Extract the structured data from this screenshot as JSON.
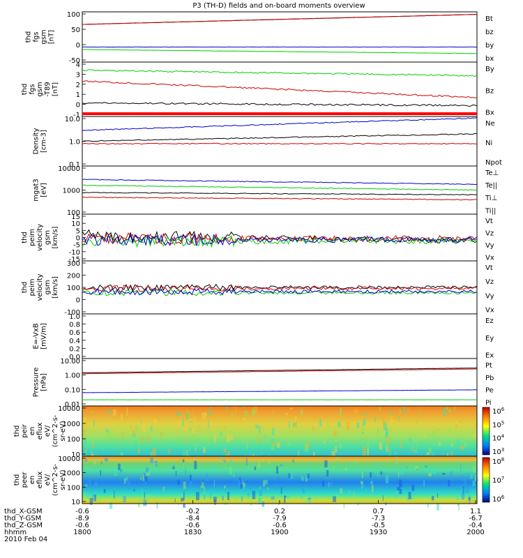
{
  "title": "P3 (TH-D) fields and on-board moments overview",
  "date": "2010 Feb 04",
  "chart_data": [
    {
      "type": "line",
      "panel": "fgs",
      "ylabel": [
        "thd",
        "fgs",
        "gsm",
        "[nT]"
      ],
      "ylim": [
        -50,
        100
      ],
      "ticks": [
        "100",
        "50",
        "0",
        "-50"
      ],
      "series": [
        {
          "name": "Bt",
          "color": "#000000"
        },
        {
          "name": "bz",
          "color": "#cc0000"
        },
        {
          "name": "by",
          "color": "#00cc00"
        },
        {
          "name": "bx",
          "color": "#0000cc"
        }
      ]
    },
    {
      "type": "line",
      "panel": "fgs-detrended",
      "ylabel": [
        "thd",
        "fgs",
        "gsm",
        "-T89",
        "[nT]"
      ],
      "ylim": [
        -2,
        5
      ],
      "ticks": [
        "4",
        "3",
        "2",
        "1",
        "0",
        "-1"
      ],
      "series": [
        {
          "name": "By",
          "color": "#00cc00"
        },
        {
          "name": "Bz",
          "color": "#cc0000"
        },
        {
          "name": "Bx",
          "color": "#000000"
        }
      ]
    },
    {
      "type": "line",
      "panel": "density",
      "ylabel": [
        "Density",
        "[cm-3]"
      ],
      "ylim": [
        0.1,
        10
      ],
      "scale": "log",
      "ticks": [
        "10.0",
        "1.0",
        "0.1"
      ],
      "series": [
        {
          "name": "Ne",
          "color": "#cc0000"
        },
        {
          "name": "Ni",
          "color": "#000000"
        },
        {
          "name": "Npot",
          "color": "#0000cc"
        }
      ]
    },
    {
      "type": "line",
      "panel": "temperature",
      "ylabel": [
        "mgat3",
        "[eV]"
      ],
      "ylim": [
        10,
        10000
      ],
      "scale": "log",
      "ticks": [
        "10000",
        "1000",
        "100"
      ],
      "series": [
        {
          "name": "Te⊥",
          "color": "#cc0000"
        },
        {
          "name": "Te||",
          "color": "#000000"
        },
        {
          "name": "Ti⊥",
          "color": "#0000cc"
        },
        {
          "name": "Ti||",
          "color": "#00cc00"
        }
      ]
    },
    {
      "type": "line",
      "panel": "velocity-detrended",
      "ylabel": [
        "thd",
        "peim",
        "velocity",
        "gsm",
        "[km/s]"
      ],
      "ylim": [
        -15,
        15
      ],
      "ticks": [
        "15",
        "10",
        "5",
        "0",
        "-5",
        "-10",
        "-15"
      ],
      "series": [
        {
          "name": "Vt",
          "color": "#000000"
        },
        {
          "name": "Vz",
          "color": "#cc0000"
        },
        {
          "name": "Vy",
          "color": "#00cc00"
        },
        {
          "name": "Vx",
          "color": "#0000cc"
        }
      ]
    },
    {
      "type": "line",
      "panel": "velocity",
      "ylabel": [
        "thd",
        "peim",
        "velocity",
        "gsm",
        "[km/s]"
      ],
      "ylim": [
        -100,
        300
      ],
      "ticks": [
        "300",
        "200",
        "100",
        "0",
        "-100"
      ],
      "series": [
        {
          "name": "Vt",
          "color": "#000000"
        },
        {
          "name": "Vz",
          "color": "#cc0000"
        },
        {
          "name": "Vy",
          "color": "#00cc00"
        },
        {
          "name": "Vx",
          "color": "#0000cc"
        }
      ]
    },
    {
      "type": "line",
      "panel": "efield",
      "ylabel": [
        "E=-VxB",
        "[mV/m]"
      ],
      "ylim": [
        0,
        1
      ],
      "ticks": [
        "1.0",
        "0.8",
        "0.6",
        "0.4",
        "0.2",
        "0.0"
      ],
      "series": [
        {
          "name": "Ez",
          "color": "#cc0000"
        },
        {
          "name": "Ey",
          "color": "#00cc00"
        },
        {
          "name": "Ex",
          "color": "#0000cc"
        }
      ]
    },
    {
      "type": "line",
      "panel": "pressure",
      "ylabel": [
        "Pressure",
        "[nPa]"
      ],
      "ylim": [
        0.01,
        10
      ],
      "scale": "log",
      "ticks": [
        "10.00",
        "1.00",
        "0.10",
        "0.01"
      ],
      "series": [
        {
          "name": "Pt",
          "color": "#000000"
        },
        {
          "name": "Pb",
          "color": "#cc0000"
        },
        {
          "name": "Pe",
          "color": "#00cc00"
        },
        {
          "name": "Pi",
          "color": "#0000cc"
        }
      ]
    },
    {
      "type": "heatmap",
      "panel": "peir",
      "ylabel": [
        "thd",
        "peir",
        "en",
        "eflux",
        "eV/",
        "(cm^2-s-",
        "sr-eV)"
      ],
      "ylim": [
        10,
        20000
      ],
      "scale": "log",
      "ticks": [
        "10000",
        "1000",
        "100",
        "10"
      ],
      "colorbar": [
        "10^6",
        "10^5",
        "10^4",
        "10^3"
      ]
    },
    {
      "type": "heatmap",
      "panel": "peer",
      "ylabel": [
        "thd",
        "peer",
        "en",
        "eflux",
        "eV/",
        "(cm^2-s-",
        "sr-eV)"
      ],
      "ylim": [
        8,
        20000
      ],
      "scale": "log",
      "ticks": [
        "10000",
        "1000",
        "100",
        "10"
      ],
      "colorbar": [
        "10^8",
        "10^7",
        "10^6"
      ]
    }
  ],
  "xaxis": {
    "rows": [
      {
        "label": "thd_X-GSM",
        "values": [
          "-0.6",
          "-0.2",
          "0.2",
          "0.7",
          "1.1"
        ]
      },
      {
        "label": "thd_Y-GSM",
        "values": [
          "-8.9",
          "-8.4",
          "-7.9",
          "-7.3",
          "-6.7"
        ]
      },
      {
        "label": "thd_Z-GSM",
        "values": [
          "-0.6",
          "-0.6",
          "-0.6",
          "-0.5",
          "-0.4"
        ]
      },
      {
        "label": "hhmm",
        "values": [
          "1800",
          "1830",
          "1900",
          "1930",
          "2000"
        ]
      }
    ]
  }
}
